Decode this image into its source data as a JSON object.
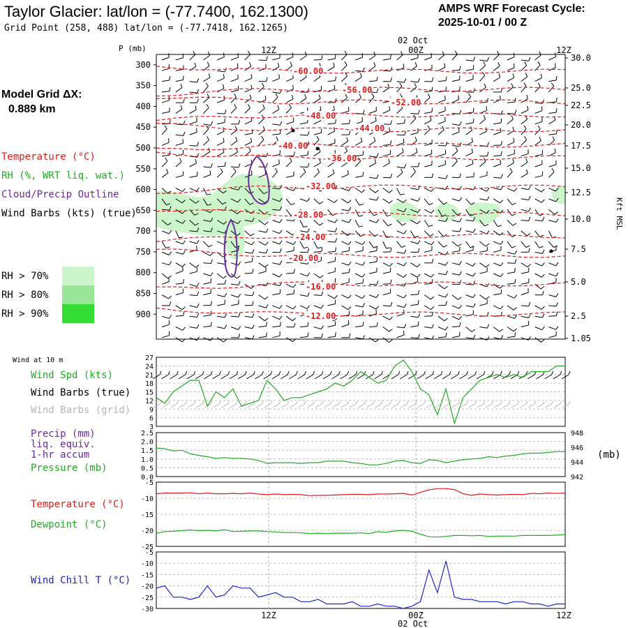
{
  "header": {
    "title": "Taylor Glacier:  lat/lon = (-77.7400, 162.1300)",
    "subtitle": "Grid Point (258, 488) lat/lon = (-77.7418, 162.1265)",
    "cycle_line1": "AMPS WRF Forecast Cycle:",
    "cycle_line2": "2025-10-01 / 00  Z"
  },
  "left_panel": {
    "grid_label": "Model Grid ΔX:",
    "grid_value": "0.889 km",
    "legend": [
      {
        "text": "Temperature (°C)",
        "color": "#dd1c1c"
      },
      {
        "text": "RH (%, WRT liq. wat.)",
        "color": "#22aa22"
      },
      {
        "text": "Cloud/Precip Outline",
        "color": "#6a2a9a"
      },
      {
        "text": "Wind Barbs (kts) (true)",
        "color": "#000000"
      }
    ],
    "rh_levels": [
      {
        "text": "RH > 70%",
        "color": "#ccf5cc"
      },
      {
        "text": "RH > 80%",
        "color": "#99e699"
      },
      {
        "text": "RH > 90%",
        "color": "#33dd33"
      }
    ]
  },
  "time_axis": {
    "top_date": "02 Oct",
    "bottom_date": "02 Oct",
    "ticks": [
      "12Z",
      "00Z",
      "12Z"
    ]
  },
  "chart_data": [
    {
      "type": "line",
      "name": "pressure-time cross section",
      "ylabel_left": "P (mb)",
      "ylabel_right": "Kft MSL",
      "pressure_levels": [
        300,
        350,
        400,
        450,
        500,
        550,
        600,
        650,
        700,
        750,
        800,
        850,
        900
      ],
      "height_ticks": [
        "30.0",
        "25.0",
        "22.5",
        "20.0",
        "17.5",
        "15.0",
        "12.5",
        "10.0",
        "7.5",
        "5.0",
        "2.5",
        "1.05"
      ],
      "isotherm_labels": [
        "-60.00",
        "-56.00",
        "-52.00",
        "-48.00",
        "-44.00",
        "-40.00",
        "-36.00",
        "-32.00",
        "-28.00",
        "-24.00",
        "-20.00",
        "-16.00",
        "-12.00"
      ]
    },
    {
      "type": "line",
      "name": "wind at 10 m",
      "panel_label": "Wind at 10 m",
      "series_labels": [
        {
          "text": "Wind Spd (kts)",
          "color": "#22aa22"
        },
        {
          "text": "Wind Barbs (true)",
          "color": "#000000"
        },
        {
          "text": "Wind Barbs (grid)",
          "color": "#b4b4b4"
        }
      ],
      "yticks": [
        "27",
        "24",
        "21",
        "18",
        "15",
        "12",
        "9",
        "6",
        "3"
      ],
      "ylim": [
        3,
        27
      ],
      "x": [
        0,
        1,
        2,
        3,
        4,
        5,
        6,
        7,
        8,
        9,
        10,
        11,
        12,
        13,
        14,
        15,
        16,
        17,
        18,
        19,
        20,
        21,
        22,
        23,
        24,
        25,
        26,
        27,
        28,
        29,
        30,
        31,
        32,
        33,
        34,
        35,
        36,
        37,
        38,
        39,
        40,
        41,
        42,
        43,
        44,
        45,
        46,
        47,
        48
      ],
      "values": [
        13,
        11,
        15,
        17,
        19,
        19,
        10,
        15,
        13,
        16,
        10,
        11,
        12,
        19,
        16,
        12,
        13,
        13,
        14,
        15,
        16,
        18,
        17,
        19,
        22,
        20,
        18,
        19,
        24,
        26,
        22,
        16,
        14,
        7,
        16,
        4,
        13,
        16,
        19,
        20,
        21,
        20,
        21,
        20,
        22,
        22,
        22,
        24,
        24
      ]
    },
    {
      "type": "line",
      "name": "precip and pressure",
      "series_labels": [
        {
          "text": "Precip (mm)",
          "color": "#6a2a9a"
        },
        {
          "text": "liq. equiv.",
          "color": "#6a2a9a"
        },
        {
          "text": "1-hr accum",
          "color": "#6a2a9a"
        },
        {
          "text": "Pressure (mb)",
          "color": "#22aa22"
        }
      ],
      "left_yticks": [
        "2.5",
        "2.0",
        "1.5",
        "1.0",
        "0.5",
        "0.0"
      ],
      "right_yticks": [
        "948",
        "946",
        "944",
        "942"
      ],
      "right_unit": "(mb)",
      "ylim_pressure": [
        942,
        948
      ],
      "x": [
        0,
        1,
        2,
        3,
        4,
        5,
        6,
        7,
        8,
        9,
        10,
        11,
        12,
        13,
        14,
        15,
        16,
        17,
        18,
        19,
        20,
        21,
        22,
        23,
        24,
        25,
        26,
        27,
        28,
        29,
        30,
        31,
        32,
        33,
        34,
        35,
        36,
        37,
        38,
        39,
        40,
        41,
        42,
        43,
        44,
        45,
        46,
        47,
        48
      ],
      "pressure": [
        945.9,
        945.8,
        945.5,
        945.6,
        945.1,
        944.9,
        944.7,
        944.5,
        944.6,
        944.5,
        944.5,
        944.4,
        944.2,
        943.8,
        943.9,
        943.9,
        943.9,
        943.8,
        943.9,
        943.9,
        944.1,
        944.1,
        944.1,
        943.9,
        943.8,
        943.6,
        943.6,
        943.8,
        944.1,
        944.2,
        943.9,
        943.8,
        944.3,
        944.2,
        943.9,
        944.1,
        944.3,
        944.4,
        944.5,
        944.7,
        944.6,
        944.8,
        944.9,
        945.1,
        945.2,
        945.2,
        945.3,
        945.4,
        945.4
      ],
      "precip": [
        0,
        0,
        0,
        0,
        0,
        0,
        0,
        0,
        0,
        0,
        0,
        0,
        0,
        0,
        0,
        0,
        0,
        0,
        0,
        0,
        0,
        0,
        0,
        0,
        0,
        0,
        0,
        0,
        0,
        0,
        0,
        0,
        0,
        0,
        0,
        0,
        0,
        0,
        0,
        0,
        0,
        0,
        0,
        0,
        0,
        0,
        0,
        0,
        0
      ]
    },
    {
      "type": "line",
      "name": "temperature and dewpoint",
      "series_labels": [
        {
          "text": "Temperature (°C)",
          "color": "#dd1c1c"
        },
        {
          "text": "Dewpoint (°C)",
          "color": "#22aa22"
        }
      ],
      "yticks": [
        "-5",
        "-10",
        "-15",
        "-20",
        "-25"
      ],
      "ylim": [
        -25,
        -5
      ],
      "x": [
        0,
        1,
        2,
        3,
        4,
        5,
        6,
        7,
        8,
        9,
        10,
        11,
        12,
        13,
        14,
        15,
        16,
        17,
        18,
        19,
        20,
        21,
        22,
        23,
        24,
        25,
        26,
        27,
        28,
        29,
        30,
        31,
        32,
        33,
        34,
        35,
        36,
        37,
        38,
        39,
        40,
        41,
        42,
        43,
        44,
        45,
        46,
        47,
        48
      ],
      "temperature": [
        -8.6,
        -8.4,
        -8.4,
        -8.4,
        -8.3,
        -8.6,
        -8.4,
        -8.6,
        -8.6,
        -8.5,
        -8.6,
        -8.4,
        -8.7,
        -8.9,
        -8.7,
        -8.9,
        -8.8,
        -8.9,
        -9.2,
        -9.1,
        -9.1,
        -9.0,
        -8.9,
        -8.8,
        -8.8,
        -8.9,
        -8.7,
        -8.7,
        -8.6,
        -8.5,
        -9.0,
        -8.2,
        -7.4,
        -7.0,
        -7.0,
        -7.3,
        -8.6,
        -9.1,
        -8.7,
        -8.9,
        -9.0,
        -8.9,
        -8.8,
        -8.9,
        -8.5,
        -8.6,
        -8.4,
        -8.5,
        -8.4
      ],
      "dewpoint": [
        -21.0,
        -20.4,
        -20.3,
        -20.1,
        -19.9,
        -20.1,
        -20.0,
        -20.2,
        -19.8,
        -20.4,
        -20.3,
        -20.2,
        -20.2,
        -20.4,
        -20.5,
        -20.7,
        -20.7,
        -20.8,
        -21.0,
        -20.9,
        -21.0,
        -20.9,
        -20.9,
        -20.9,
        -20.8,
        -21.0,
        -20.4,
        -20.6,
        -20.2,
        -20.0,
        -20.3,
        -21.2,
        -22.0,
        -22.1,
        -21.9,
        -21.6,
        -21.6,
        -21.7,
        -21.6,
        -21.9,
        -21.8,
        -21.8,
        -21.8,
        -21.6,
        -21.6,
        -21.6,
        -21.6,
        -21.5,
        -21.4
      ]
    },
    {
      "type": "line",
      "name": "wind chill",
      "series_labels": [
        {
          "text": "Wind Chill T (°C)",
          "color": "#1e24c8"
        }
      ],
      "yticks": [
        "-5",
        "-10",
        "-15",
        "-20",
        "-25",
        "-30"
      ],
      "ylim": [
        -30,
        -5
      ],
      "x": [
        0,
        1,
        2,
        3,
        4,
        5,
        6,
        7,
        8,
        9,
        10,
        11,
        12,
        13,
        14,
        15,
        16,
        17,
        18,
        19,
        20,
        21,
        22,
        23,
        24,
        25,
        26,
        27,
        28,
        29,
        30,
        31,
        32,
        33,
        34,
        35,
        36,
        37,
        38,
        39,
        40,
        41,
        42,
        43,
        44,
        45,
        46,
        47,
        48
      ],
      "values": [
        -21,
        -20,
        -25,
        -25,
        -26,
        -25,
        -20,
        -25,
        -24,
        -20,
        -21,
        -21,
        -25,
        -24,
        -23,
        -25,
        -25,
        -27,
        -27,
        -26,
        -28,
        -28,
        -28,
        -27,
        -29,
        -29,
        -28,
        -29,
        -29,
        -30,
        -29,
        -27,
        -13,
        -23,
        -9,
        -25,
        -26,
        -26,
        -27,
        -27,
        -27,
        -28,
        -27,
        -27,
        -28,
        -28,
        -29,
        -28,
        -28
      ]
    }
  ]
}
